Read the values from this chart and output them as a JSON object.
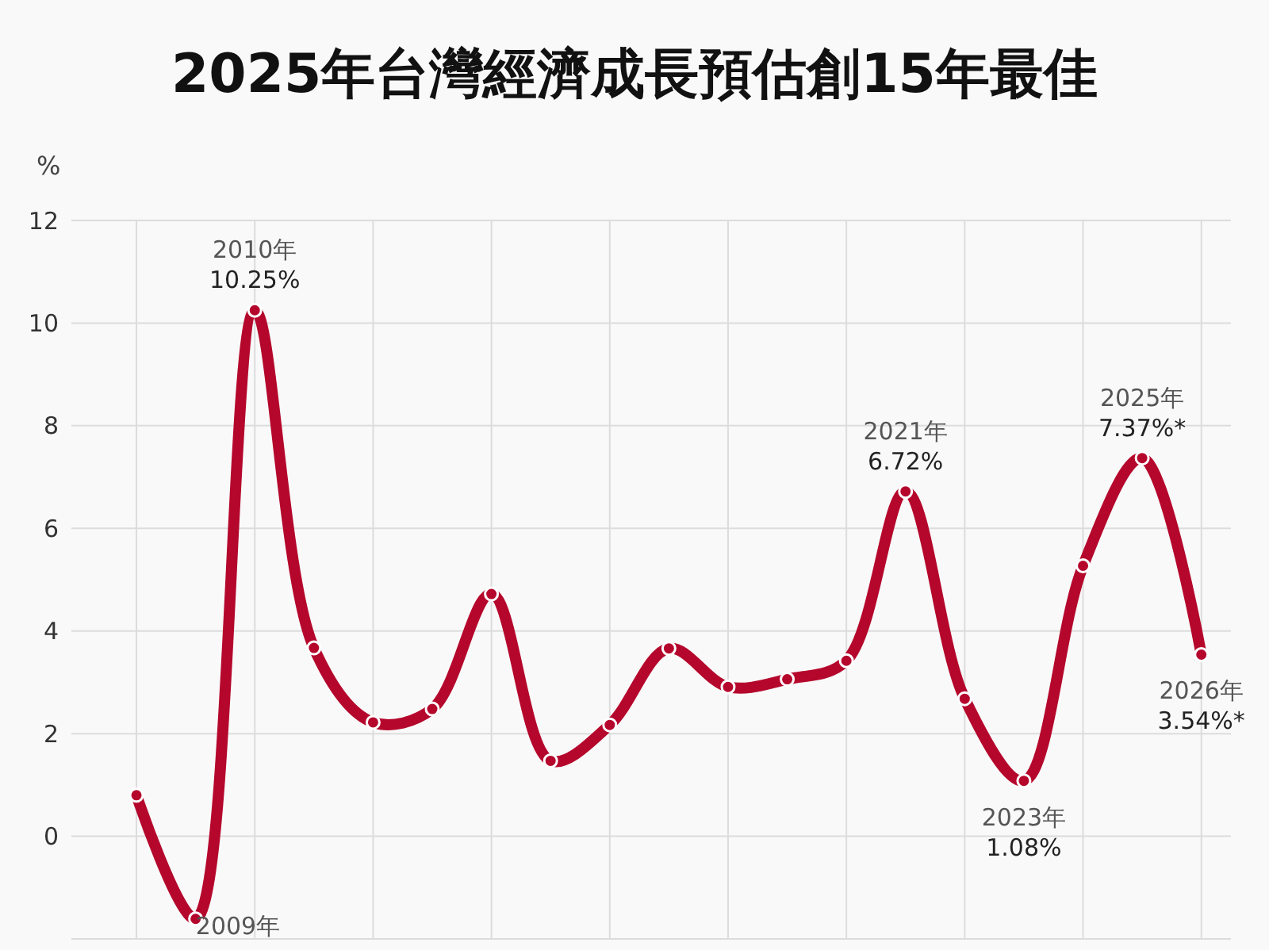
{
  "chart_data": {
    "type": "line",
    "title": "2025年台灣經濟成長預估創15年最佳",
    "ylabel": "%",
    "categories": [
      null,
      null,
      null,
      null,
      null,
      null,
      null,
      null,
      null,
      null,
      null,
      null,
      null,
      null,
      null,
      null,
      null,
      null,
      null
    ],
    "series": [
      {
        "color": "#b5072c",
        "values": [
          0.8,
          -1.61,
          10.25,
          3.67,
          2.22,
          2.48,
          4.72,
          1.47,
          2.17,
          3.66,
          2.91,
          3.06,
          3.42,
          6.72,
          2.68,
          1.08,
          5.27,
          7.37,
          3.54
        ]
      }
    ],
    "ylim": [
      -2,
      12
    ],
    "yticks": [
      0,
      2,
      4,
      6,
      8,
      10,
      12
    ],
    "tick_labels": "y",
    "grid": true,
    "marker": "circle",
    "line_style": "solid",
    "annotations": [
      "2009年",
      {
        "text": "2010年\n10.25%",
        "y": 10.25
      },
      {
        "text": "2021年\n6.72%",
        "y": 6.72
      },
      {
        "text": "2023年\n1.08%",
        "y": 1.08
      },
      {
        "text": "2025年\n7.37%*",
        "y": 7.37
      },
      {
        "text": "2026年\n3.54%*",
        "y": 3.54
      }
    ]
  }
}
